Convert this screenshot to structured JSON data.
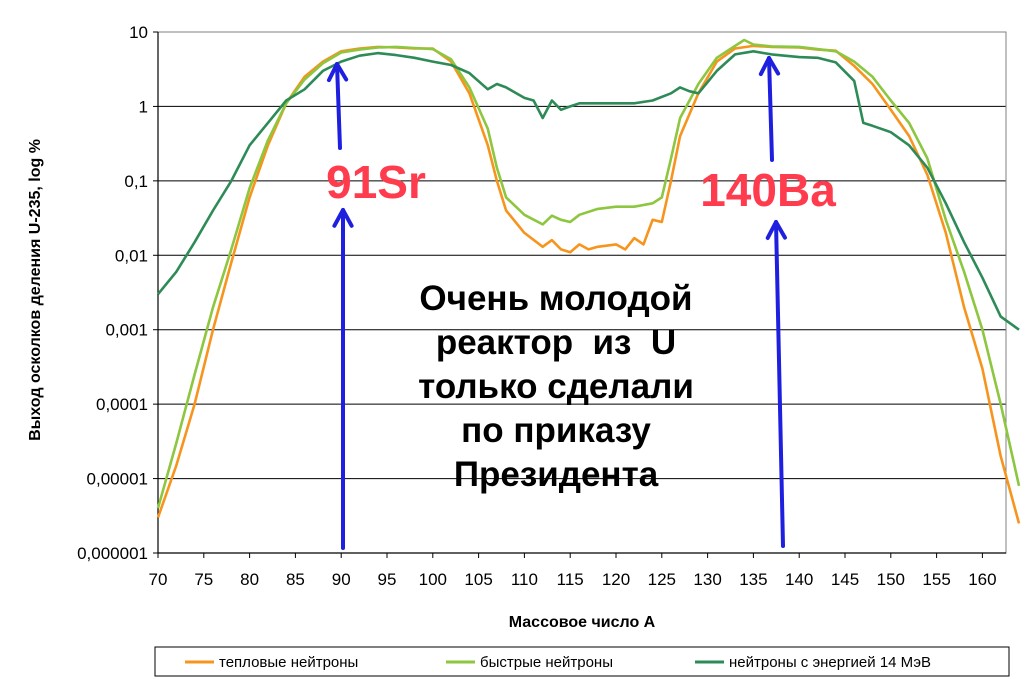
{
  "chart_data": {
    "type": "line",
    "xlabel": "Массовое число А",
    "ylabel": "Выход осколков деления U-235, log %",
    "y_scale": "log",
    "ylim": [
      1e-06,
      10
    ],
    "xlim": [
      70,
      164
    ],
    "x_ticks": [
      "70",
      "75",
      "80",
      "85",
      "90",
      "95",
      "100",
      "105",
      "110",
      "115",
      "120",
      "125",
      "130",
      "135",
      "140",
      "145",
      "150",
      "155",
      "160"
    ],
    "y_ticks": [
      "0,000001",
      "0,00001",
      "0,0001",
      "0,001",
      "0,01",
      "0,1",
      "1",
      "10"
    ],
    "grid": "horizontal",
    "legend_position": "bottom",
    "series": [
      {
        "name": "тепловые нейтроны",
        "color": "#f7941d",
        "points": [
          [
            70,
            3e-06
          ],
          [
            72,
            1.5e-05
          ],
          [
            74,
            0.0001
          ],
          [
            76,
            0.001
          ],
          [
            78,
            0.008
          ],
          [
            80,
            0.06
          ],
          [
            82,
            0.3
          ],
          [
            84,
            1.1
          ],
          [
            86,
            2.5
          ],
          [
            88,
            4.0
          ],
          [
            90,
            5.5
          ],
          [
            92,
            6.0
          ],
          [
            94,
            6.3
          ],
          [
            96,
            6.2
          ],
          [
            98,
            6.0
          ],
          [
            100,
            6.0
          ],
          [
            102,
            4.0
          ],
          [
            104,
            1.5
          ],
          [
            106,
            0.3
          ],
          [
            107,
            0.1
          ],
          [
            108,
            0.04
          ],
          [
            110,
            0.02
          ],
          [
            112,
            0.013
          ],
          [
            113,
            0.016
          ],
          [
            114,
            0.012
          ],
          [
            115,
            0.011
          ],
          [
            116,
            0.014
          ],
          [
            117,
            0.012
          ],
          [
            118,
            0.013
          ],
          [
            120,
            0.014
          ],
          [
            121,
            0.012
          ],
          [
            122,
            0.017
          ],
          [
            123,
            0.014
          ],
          [
            124,
            0.03
          ],
          [
            125,
            0.028
          ],
          [
            126,
            0.1
          ],
          [
            127,
            0.4
          ],
          [
            129,
            1.5
          ],
          [
            131,
            4.0
          ],
          [
            133,
            6.0
          ],
          [
            135,
            6.5
          ],
          [
            137,
            6.3
          ],
          [
            140,
            6.2
          ],
          [
            142,
            5.8
          ],
          [
            144,
            5.6
          ],
          [
            146,
            3.5
          ],
          [
            148,
            2.0
          ],
          [
            150,
            0.9
          ],
          [
            152,
            0.4
          ],
          [
            154,
            0.12
          ],
          [
            156,
            0.02
          ],
          [
            158,
            0.002
          ],
          [
            160,
            0.0003
          ],
          [
            162,
            2e-05
          ],
          [
            164,
            2.5e-06
          ]
        ]
      },
      {
        "name": "быстрые нейтроны",
        "color": "#8dc63f",
        "points": [
          [
            70,
            4e-06
          ],
          [
            72,
            3e-05
          ],
          [
            74,
            0.00025
          ],
          [
            76,
            0.002
          ],
          [
            78,
            0.012
          ],
          [
            80,
            0.08
          ],
          [
            82,
            0.35
          ],
          [
            84,
            1.1
          ],
          [
            86,
            2.3
          ],
          [
            88,
            3.8
          ],
          [
            90,
            5.3
          ],
          [
            92,
            5.8
          ],
          [
            94,
            6.2
          ],
          [
            96,
            6.3
          ],
          [
            98,
            6.1
          ],
          [
            100,
            5.9
          ],
          [
            102,
            4.3
          ],
          [
            104,
            1.8
          ],
          [
            106,
            0.5
          ],
          [
            107,
            0.15
          ],
          [
            108,
            0.06
          ],
          [
            110,
            0.035
          ],
          [
            112,
            0.026
          ],
          [
            113,
            0.034
          ],
          [
            114,
            0.03
          ],
          [
            115,
            0.028
          ],
          [
            116,
            0.035
          ],
          [
            118,
            0.042
          ],
          [
            120,
            0.045
          ],
          [
            122,
            0.045
          ],
          [
            124,
            0.05
          ],
          [
            125,
            0.06
          ],
          [
            126,
            0.2
          ],
          [
            127,
            0.7
          ],
          [
            129,
            2.0
          ],
          [
            131,
            4.5
          ],
          [
            133,
            6.5
          ],
          [
            134,
            7.8
          ],
          [
            135,
            6.8
          ],
          [
            137,
            6.4
          ],
          [
            140,
            6.3
          ],
          [
            142,
            5.9
          ],
          [
            144,
            5.5
          ],
          [
            146,
            4.0
          ],
          [
            148,
            2.5
          ],
          [
            150,
            1.2
          ],
          [
            152,
            0.6
          ],
          [
            154,
            0.2
          ],
          [
            156,
            0.03
          ],
          [
            158,
            0.006
          ],
          [
            160,
            0.001
          ],
          [
            162,
            0.0001
          ],
          [
            164,
            8e-06
          ]
        ]
      },
      {
        "name": "нейтроны с энергией 14 МэВ",
        "color": "#2e8b57",
        "points": [
          [
            70,
            0.003
          ],
          [
            72,
            0.006
          ],
          [
            74,
            0.015
          ],
          [
            76,
            0.04
          ],
          [
            78,
            0.1
          ],
          [
            80,
            0.3
          ],
          [
            82,
            0.6
          ],
          [
            84,
            1.2
          ],
          [
            86,
            1.7
          ],
          [
            88,
            3.0
          ],
          [
            90,
            4.0
          ],
          [
            92,
            4.8
          ],
          [
            94,
            5.2
          ],
          [
            96,
            4.9
          ],
          [
            98,
            4.5
          ],
          [
            100,
            4.0
          ],
          [
            102,
            3.6
          ],
          [
            104,
            2.8
          ],
          [
            106,
            1.7
          ],
          [
            107,
            2.0
          ],
          [
            108,
            1.8
          ],
          [
            110,
            1.3
          ],
          [
            111,
            1.2
          ],
          [
            112,
            0.7
          ],
          [
            113,
            1.2
          ],
          [
            114,
            0.9
          ],
          [
            115,
            1.0
          ],
          [
            116,
            1.1
          ],
          [
            118,
            1.1
          ],
          [
            120,
            1.1
          ],
          [
            122,
            1.1
          ],
          [
            124,
            1.2
          ],
          [
            126,
            1.5
          ],
          [
            127,
            1.8
          ],
          [
            128,
            1.6
          ],
          [
            129,
            1.5
          ],
          [
            131,
            3.0
          ],
          [
            133,
            5.0
          ],
          [
            135,
            5.5
          ],
          [
            137,
            5.0
          ],
          [
            140,
            4.6
          ],
          [
            142,
            4.5
          ],
          [
            144,
            3.9
          ],
          [
            146,
            2.2
          ],
          [
            147,
            0.6
          ],
          [
            148,
            0.55
          ],
          [
            150,
            0.45
          ],
          [
            152,
            0.3
          ],
          [
            154,
            0.15
          ],
          [
            156,
            0.05
          ],
          [
            158,
            0.015
          ],
          [
            160,
            0.005
          ],
          [
            162,
            0.0015
          ],
          [
            164,
            0.001
          ]
        ]
      }
    ],
    "annotations": [
      {
        "text": "91Sr",
        "x": 90
      },
      {
        "text": "140Ba",
        "x": 139
      }
    ],
    "note_lines": [
      "Очень молодой",
      "реактор  из  U",
      "только сделали",
      "по приказу",
      "Президента"
    ]
  }
}
